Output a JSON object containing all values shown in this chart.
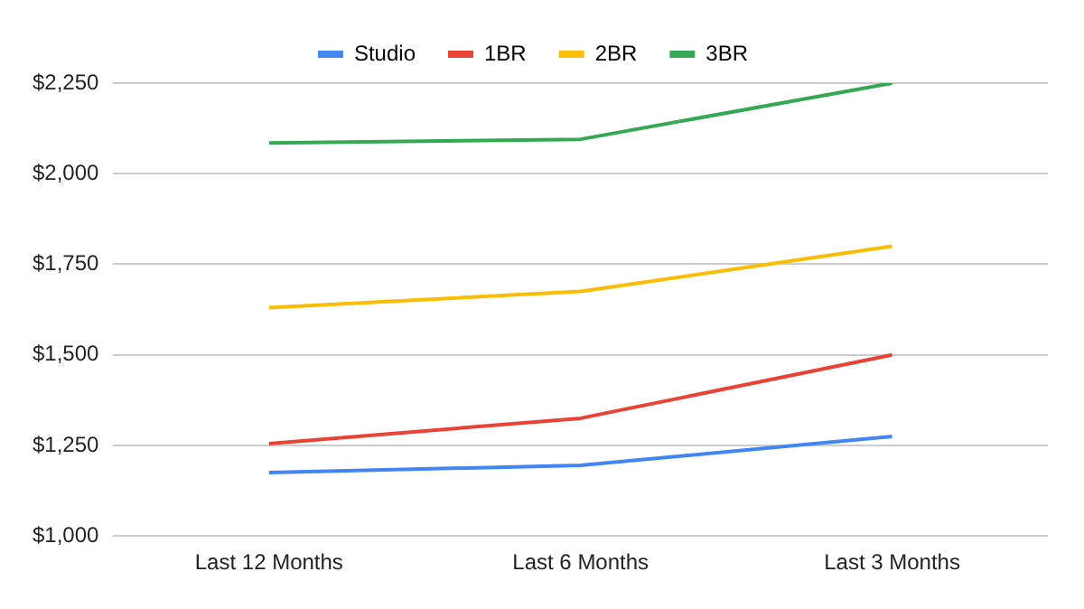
{
  "chart_data": {
    "type": "line",
    "categories": [
      "Last 12 Months",
      "Last 6 Months",
      "Last 3 Months"
    ],
    "series": [
      {
        "name": "Studio",
        "color": "#4285f4",
        "values": [
          1175,
          1195,
          1275
        ]
      },
      {
        "name": "1BR",
        "color": "#ea4335",
        "values": [
          1255,
          1325,
          1500
        ]
      },
      {
        "name": "2BR",
        "color": "#fbbc04",
        "values": [
          1630,
          1675,
          1800
        ]
      },
      {
        "name": "3BR",
        "color": "#34a853",
        "values": [
          2085,
          2095,
          2250
        ]
      }
    ],
    "ylim": [
      1000,
      2250
    ],
    "yticks": [
      {
        "value": 1000,
        "label": "$1,000"
      },
      {
        "value": 1250,
        "label": "$1,250"
      },
      {
        "value": 1500,
        "label": "$1,500"
      },
      {
        "value": 1750,
        "label": "$1,750"
      },
      {
        "value": 2000,
        "label": "$2,000"
      },
      {
        "value": 2250,
        "label": "$2,250"
      }
    ],
    "grid": "y",
    "legend": "top",
    "marker": "none",
    "line_style": "solid"
  }
}
